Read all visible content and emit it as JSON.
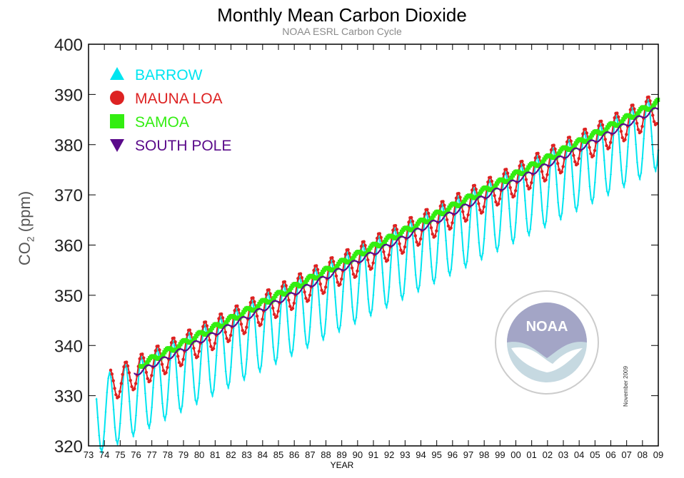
{
  "chart_data": {
    "type": "line",
    "title": "Monthly Mean Carbon Dioxide",
    "subtitle": "NOAA ESRL Carbon Cycle",
    "xlabel": "YEAR",
    "ylabel": "CO2 (ppm)",
    "ylabel_main": "CO",
    "ylabel_sub": "2",
    "ylabel_rest": " (ppm)",
    "xlim": [
      1973,
      2009
    ],
    "ylim": [
      320,
      400
    ],
    "yticks": [
      320,
      330,
      340,
      350,
      360,
      370,
      380,
      390,
      400
    ],
    "xtick_labels": [
      "73",
      "74",
      "75",
      "76",
      "77",
      "78",
      "79",
      "80",
      "81",
      "82",
      "83",
      "84",
      "85",
      "86",
      "87",
      "88",
      "89",
      "90",
      "91",
      "92",
      "93",
      "94",
      "95",
      "96",
      "97",
      "98",
      "99",
      "00",
      "01",
      "02",
      "03",
      "04",
      "05",
      "06",
      "07",
      "08",
      "09"
    ],
    "legend_position": "top-left",
    "annotation": "November 2009",
    "logo_text": "NOAA",
    "series": [
      {
        "name": "BARROW",
        "color": "#00e5f0",
        "marker": "triangle-up",
        "start": 1973.5,
        "end": 2009.0,
        "base": 325.0,
        "rate": 1.6,
        "amplitude": 7.5,
        "phase": 0.33
      },
      {
        "name": "MAUNA LOA",
        "color": "#dd2222",
        "marker": "circle",
        "start": 1974.4,
        "end": 2008.9,
        "base": 329.8,
        "rate": 1.6,
        "amplitude": 3.2,
        "phase": 0.35
      },
      {
        "name": "SAMOA",
        "color": "#33ee11",
        "marker": "square",
        "start": 1976.3,
        "end": 2009.0,
        "base": 330.8,
        "rate": 1.6,
        "amplitude": 0.6,
        "phase": 0.0
      },
      {
        "name": "SOUTH POLE",
        "color": "#5a0a8a",
        "marker": "triangle-down",
        "start": 1975.9,
        "end": 2009.0,
        "base": 329.6,
        "rate": 1.6,
        "amplitude": 0.5,
        "phase": 0.7
      }
    ]
  }
}
